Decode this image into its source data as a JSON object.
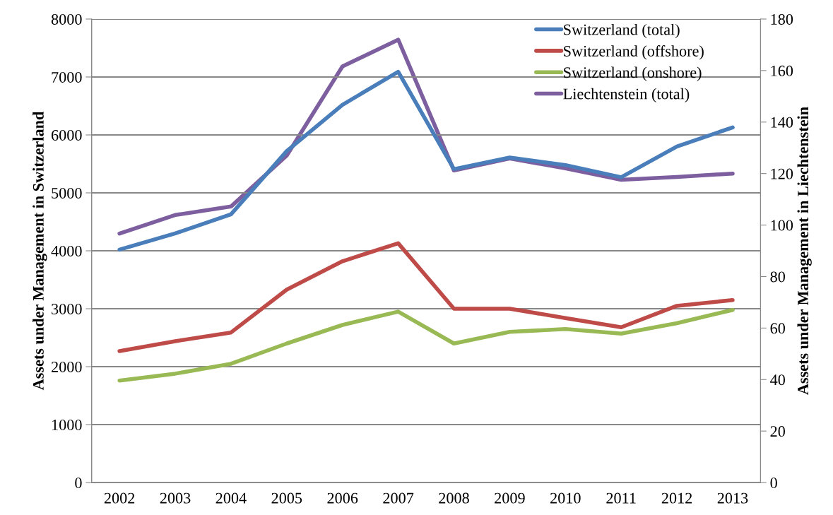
{
  "chart_data": {
    "type": "line",
    "ylabel": "Assets under Management in Switzerland",
    "y2label": "Assets under Management in Liechtenstein",
    "categories": [
      "2002",
      "2003",
      "2004",
      "2005",
      "2006",
      "2007",
      "2008",
      "2009",
      "2010",
      "2011",
      "2012",
      "2013"
    ],
    "series": [
      {
        "name": "Switzerland (total)",
        "color": "#4a7ebb",
        "values": [
          4020,
          4300,
          4630,
          5720,
          6520,
          7090,
          5410,
          5610,
          5480,
          5270,
          5800,
          6130
        ]
      },
      {
        "name": "Switzerland (offshore)",
        "color": "#be4b48",
        "values": [
          2270,
          2440,
          2590,
          3330,
          3820,
          4130,
          3000,
          3000,
          2840,
          2680,
          3050,
          3150
        ]
      },
      {
        "name": "Switzerland (onshore)",
        "color": "#98b954",
        "values": [
          1760,
          1880,
          2050,
          2400,
          2720,
          2950,
          2400,
          2600,
          2650,
          2570,
          2750,
          2980
        ]
      },
      {
        "name": "Liechtenstein (total)",
        "color": "#7d5fa0",
        "axis": "y2",
        "values": [
          96.7,
          103.9,
          107.2,
          127,
          161.6,
          172,
          121.2,
          125.9,
          122,
          117.6,
          118.7,
          120
        ]
      }
    ],
    "ylim": [
      0,
      8000
    ],
    "yticks": [
      0,
      1000,
      2000,
      3000,
      4000,
      5000,
      6000,
      7000,
      8000
    ],
    "y2lim": [
      0,
      180
    ],
    "y2ticks": [
      0,
      20,
      40,
      60,
      80,
      100,
      120,
      140,
      160,
      180
    ],
    "grid": "y",
    "legend": "top right",
    "marker": "none",
    "line_style": "solid"
  }
}
